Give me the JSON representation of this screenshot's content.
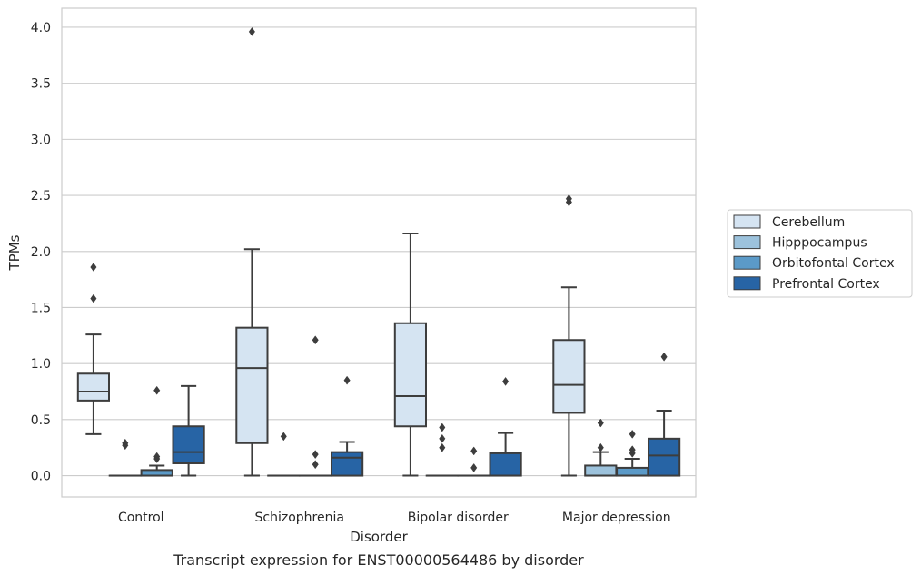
{
  "chart_data": {
    "type": "boxplot",
    "title": "",
    "caption": "Transcript expression for ENST00000564486 by disorder",
    "xlabel": "Disorder",
    "ylabel": "TPMs",
    "ylim": [
      -0.19,
      4.17
    ],
    "yticks": [
      "0.0",
      "0.5",
      "1.0",
      "1.5",
      "2.0",
      "2.5",
      "3.0",
      "3.5",
      "4.0"
    ],
    "grid": "horizontal",
    "legend_position": "right",
    "categories": [
      "Control",
      "Schizophrenia",
      "Bipolar disorder",
      "Major depression"
    ],
    "series": [
      {
        "name": "Cerebellum",
        "color": "#d5e4f2",
        "boxes": [
          {
            "low": 0.37,
            "q1": 0.67,
            "median": 0.75,
            "q3": 0.91,
            "high": 1.26,
            "outliers": [
              1.58,
              1.86
            ]
          },
          {
            "low": 0.0,
            "q1": 0.29,
            "median": 0.96,
            "q3": 1.32,
            "high": 2.02,
            "outliers": [
              3.96
            ]
          },
          {
            "low": 0.0,
            "q1": 0.44,
            "median": 0.71,
            "q3": 1.36,
            "high": 2.16,
            "outliers": []
          },
          {
            "low": 0.0,
            "q1": 0.56,
            "median": 0.81,
            "q3": 1.21,
            "high": 1.68,
            "outliers": [
              2.44,
              2.47
            ]
          }
        ]
      },
      {
        "name": "Hipppocampus",
        "color": "#9cc2dc",
        "boxes": [
          {
            "low": 0.0,
            "q1": 0.0,
            "median": 0.0,
            "q3": 0.0,
            "high": 0.0,
            "outliers": [
              0.27,
              0.29
            ]
          },
          {
            "low": 0.0,
            "q1": 0.0,
            "median": 0.0,
            "q3": 0.0,
            "high": 0.0,
            "outliers": [
              0.35
            ]
          },
          {
            "low": 0.0,
            "q1": 0.0,
            "median": 0.0,
            "q3": 0.0,
            "high": 0.0,
            "outliers": [
              0.25,
              0.33,
              0.43
            ]
          },
          {
            "low": 0.0,
            "q1": 0.0,
            "median": 0.0,
            "q3": 0.09,
            "high": 0.21,
            "outliers": [
              0.25,
              0.47
            ]
          }
        ]
      },
      {
        "name": "Orbitofontal Cortex",
        "color": "#5b9ac8",
        "boxes": [
          {
            "low": 0.0,
            "q1": 0.0,
            "median": 0.0,
            "q3": 0.05,
            "high": 0.09,
            "outliers": [
              0.15,
              0.17,
              0.76
            ]
          },
          {
            "low": 0.0,
            "q1": 0.0,
            "median": 0.0,
            "q3": 0.0,
            "high": 0.0,
            "outliers": [
              0.1,
              0.19,
              1.21
            ]
          },
          {
            "low": 0.0,
            "q1": 0.0,
            "median": 0.0,
            "q3": 0.0,
            "high": 0.0,
            "outliers": [
              0.07,
              0.22
            ]
          },
          {
            "low": 0.0,
            "q1": 0.0,
            "median": 0.0,
            "q3": 0.07,
            "high": 0.15,
            "outliers": [
              0.2,
              0.23,
              0.37
            ]
          }
        ]
      },
      {
        "name": "Prefrontal Cortex",
        "color": "#2764a5",
        "boxes": [
          {
            "low": 0.0,
            "q1": 0.11,
            "median": 0.21,
            "q3": 0.44,
            "high": 0.8,
            "outliers": []
          },
          {
            "low": 0.0,
            "q1": 0.0,
            "median": 0.16,
            "q3": 0.21,
            "high": 0.3,
            "outliers": [
              0.85
            ]
          },
          {
            "low": 0.0,
            "q1": 0.0,
            "median": 0.0,
            "q3": 0.2,
            "high": 0.38,
            "outliers": [
              0.84
            ]
          },
          {
            "low": 0.0,
            "q1": 0.0,
            "median": 0.18,
            "q3": 0.33,
            "high": 0.58,
            "outliers": [
              1.06
            ]
          }
        ]
      }
    ]
  }
}
